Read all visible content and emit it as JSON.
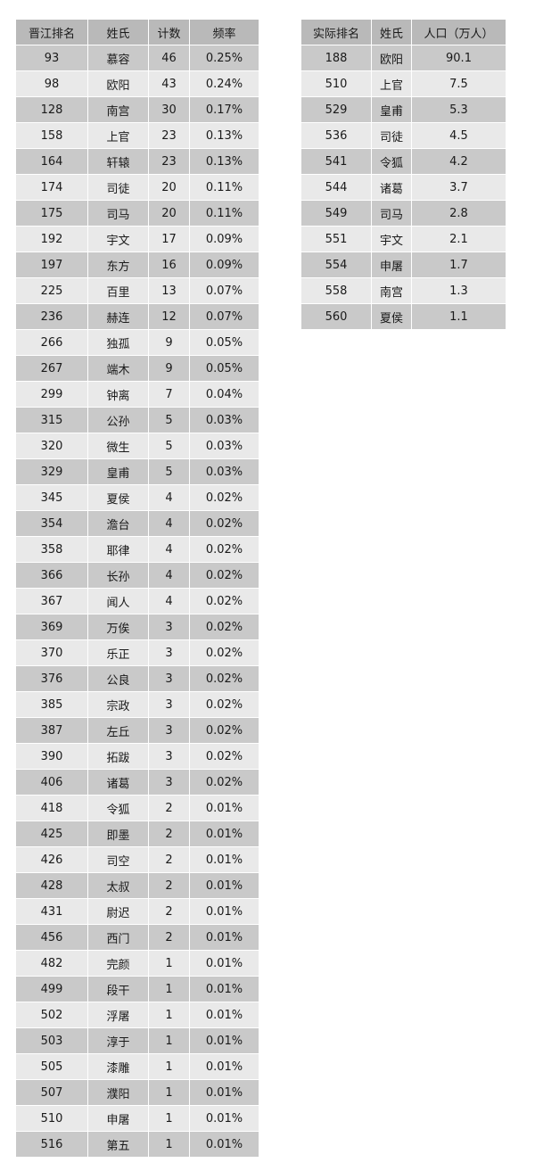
{
  "left_table": {
    "headers": [
      "晋江排名",
      "姓氏",
      "计数",
      "频率"
    ],
    "rows": [
      [
        "93",
        "慕容",
        "46",
        "0.25%"
      ],
      [
        "98",
        "欧阳",
        "43",
        "0.24%"
      ],
      [
        "128",
        "南宫",
        "30",
        "0.17%"
      ],
      [
        "158",
        "上官",
        "23",
        "0.13%"
      ],
      [
        "164",
        "轩辕",
        "23",
        "0.13%"
      ],
      [
        "174",
        "司徒",
        "20",
        "0.11%"
      ],
      [
        "175",
        "司马",
        "20",
        "0.11%"
      ],
      [
        "192",
        "宇文",
        "17",
        "0.09%"
      ],
      [
        "197",
        "东方",
        "16",
        "0.09%"
      ],
      [
        "225",
        "百里",
        "13",
        "0.07%"
      ],
      [
        "236",
        "赫连",
        "12",
        "0.07%"
      ],
      [
        "266",
        "独孤",
        "9",
        "0.05%"
      ],
      [
        "267",
        "端木",
        "9",
        "0.05%"
      ],
      [
        "299",
        "钟离",
        "7",
        "0.04%"
      ],
      [
        "315",
        "公孙",
        "5",
        "0.03%"
      ],
      [
        "320",
        "微生",
        "5",
        "0.03%"
      ],
      [
        "329",
        "皇甫",
        "5",
        "0.03%"
      ],
      [
        "345",
        "夏侯",
        "4",
        "0.02%"
      ],
      [
        "354",
        "澹台",
        "4",
        "0.02%"
      ],
      [
        "358",
        "耶律",
        "4",
        "0.02%"
      ],
      [
        "366",
        "长孙",
        "4",
        "0.02%"
      ],
      [
        "367",
        "闻人",
        "4",
        "0.02%"
      ],
      [
        "369",
        "万俟",
        "3",
        "0.02%"
      ],
      [
        "370",
        "乐正",
        "3",
        "0.02%"
      ],
      [
        "376",
        "公良",
        "3",
        "0.02%"
      ],
      [
        "385",
        "宗政",
        "3",
        "0.02%"
      ],
      [
        "387",
        "左丘",
        "3",
        "0.02%"
      ],
      [
        "390",
        "拓跋",
        "3",
        "0.02%"
      ],
      [
        "406",
        "诸葛",
        "3",
        "0.02%"
      ],
      [
        "418",
        "令狐",
        "2",
        "0.01%"
      ],
      [
        "425",
        "即墨",
        "2",
        "0.01%"
      ],
      [
        "426",
        "司空",
        "2",
        "0.01%"
      ],
      [
        "428",
        "太叔",
        "2",
        "0.01%"
      ],
      [
        "431",
        "尉迟",
        "2",
        "0.01%"
      ],
      [
        "456",
        "西门",
        "2",
        "0.01%"
      ],
      [
        "482",
        "完颜",
        "1",
        "0.01%"
      ],
      [
        "499",
        "段干",
        "1",
        "0.01%"
      ],
      [
        "502",
        "浮屠",
        "1",
        "0.01%"
      ],
      [
        "503",
        "淳于",
        "1",
        "0.01%"
      ],
      [
        "505",
        "漆雕",
        "1",
        "0.01%"
      ],
      [
        "507",
        "濮阳",
        "1",
        "0.01%"
      ],
      [
        "510",
        "申屠",
        "1",
        "0.01%"
      ],
      [
        "516",
        "第五",
        "1",
        "0.01%"
      ]
    ]
  },
  "right_table": {
    "headers": [
      "实际排名",
      "姓氏",
      "人口（万人）"
    ],
    "rows": [
      [
        "188",
        "欧阳",
        "90.1"
      ],
      [
        "510",
        "上官",
        "7.5"
      ],
      [
        "529",
        "皇甫",
        "5.3"
      ],
      [
        "536",
        "司徒",
        "4.5"
      ],
      [
        "541",
        "令狐",
        "4.2"
      ],
      [
        "544",
        "诸葛",
        "3.7"
      ],
      [
        "549",
        "司马",
        "2.8"
      ],
      [
        "551",
        "宇文",
        "2.1"
      ],
      [
        "554",
        "申屠",
        "1.7"
      ],
      [
        "558",
        "南宫",
        "1.3"
      ],
      [
        "560",
        "夏侯",
        "1.1"
      ]
    ]
  }
}
